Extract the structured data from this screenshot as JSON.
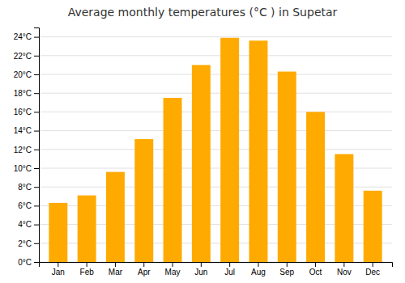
{
  "chart_data": {
    "type": "bar",
    "title": "Average monthly temperatures (°C ) in Supetar",
    "categories": [
      "Jan",
      "Feb",
      "Mar",
      "Apr",
      "May",
      "Jun",
      "Jul",
      "Aug",
      "Sep",
      "Oct",
      "Nov",
      "Dec"
    ],
    "values": [
      6.3,
      7.1,
      9.6,
      13.1,
      17.5,
      21.0,
      23.9,
      23.6,
      20.3,
      16.0,
      11.5,
      7.6
    ],
    "color": "#FFAA00",
    "ylim": [
      0,
      25
    ],
    "yticks": [
      {
        "value": 0,
        "label": "0°C"
      },
      {
        "value": 2,
        "label": "2°C"
      },
      {
        "value": 4,
        "label": "4°C"
      },
      {
        "value": 6,
        "label": "6°C"
      },
      {
        "value": 8,
        "label": "8°C"
      },
      {
        "value": 10,
        "label": "10°C"
      },
      {
        "value": 12,
        "label": "12°C"
      },
      {
        "value": 14,
        "label": "14°C"
      },
      {
        "value": 16,
        "label": "16°C"
      },
      {
        "value": 18,
        "label": "18°C"
      },
      {
        "value": 20,
        "label": "20°C"
      },
      {
        "value": 22,
        "label": "22°C"
      },
      {
        "value": 24,
        "label": "24°C"
      }
    ],
    "grid": true
  }
}
